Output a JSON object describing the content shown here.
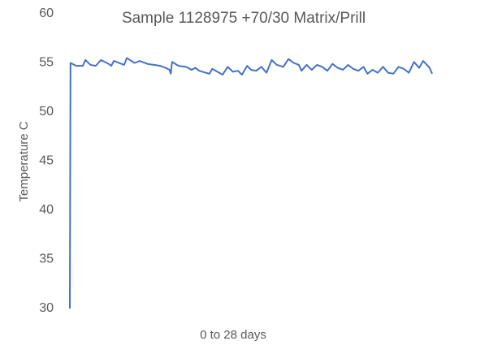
{
  "chart_data": {
    "type": "line",
    "title": "Sample 1128975 +70/30 Matrix/Prill",
    "x_label": "0 to 28 days",
    "y_label": "Temperature C",
    "xlim": [
      0,
      28
    ],
    "ylim": [
      30,
      60
    ],
    "yticks": [
      30,
      35,
      40,
      45,
      50,
      55,
      60
    ],
    "grid": false,
    "x": [
      0,
      0.05,
      0.5,
      1,
      1.2,
      1.6,
      2,
      2.4,
      3,
      3.2,
      3.4,
      4,
      4.2,
      4.4,
      5,
      5.4,
      6,
      6.5,
      7,
      7.4,
      7.7,
      7.8,
      7.9,
      8.4,
      9,
      9.4,
      9.7,
      10,
      10.5,
      10.8,
      11,
      11.4,
      11.8,
      12.2,
      12.6,
      13,
      13.3,
      13.7,
      14,
      14.4,
      14.8,
      15.2,
      15.6,
      16,
      16.5,
      16.9,
      17.3,
      17.7,
      17.9,
      18.3,
      18.7,
      19.1,
      19.5,
      19.9,
      20.3,
      20.7,
      21.1,
      21.5,
      21.9,
      22.3,
      22.7,
      23,
      23.4,
      23.8,
      24.2,
      24.6,
      25,
      25.4,
      25.8,
      26.2,
      26.6,
      27,
      27.3,
      27.6,
      27.8,
      28
    ],
    "series": [
      {
        "name": "Temperature",
        "color": "#4472c4",
        "values": [
          30,
          55.0,
          54.7,
          54.7,
          55.3,
          54.8,
          54.7,
          55.3,
          54.9,
          54.7,
          55.2,
          54.9,
          54.8,
          55.5,
          55.0,
          55.2,
          54.9,
          54.8,
          54.7,
          54.5,
          54.3,
          53.9,
          55.1,
          54.7,
          54.6,
          54.3,
          54.5,
          54.2,
          54.0,
          53.9,
          54.4,
          54.1,
          53.8,
          54.6,
          54.1,
          54.2,
          53.8,
          54.7,
          54.3,
          54.2,
          54.6,
          54.0,
          55.3,
          54.8,
          54.6,
          55.4,
          55.0,
          54.8,
          54.2,
          54.8,
          54.3,
          54.8,
          54.6,
          54.2,
          54.9,
          54.5,
          54.3,
          54.8,
          54.4,
          54.2,
          54.6,
          53.9,
          54.3,
          54.0,
          54.6,
          54.0,
          53.9,
          54.6,
          54.4,
          54.0,
          55.1,
          54.5,
          55.2,
          54.8,
          54.5,
          53.9
        ]
      }
    ]
  }
}
